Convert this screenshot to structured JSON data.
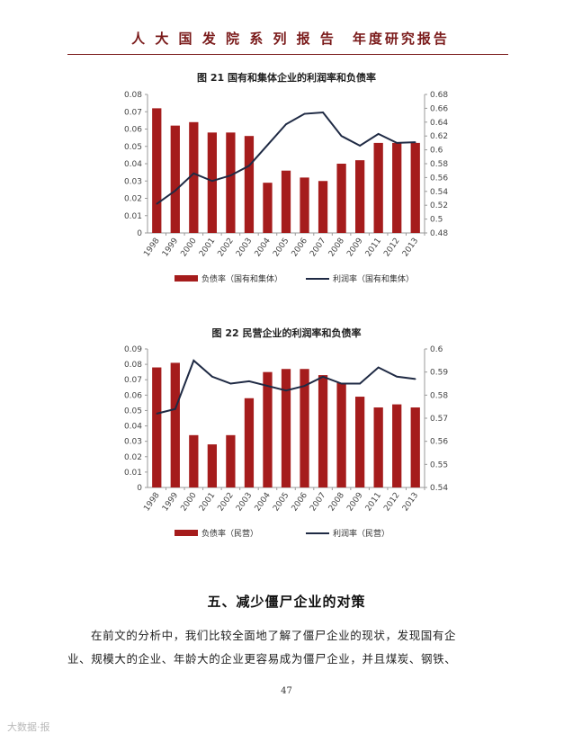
{
  "header": {
    "title": "人 大 国 发 院 系 列 报 告　年度研究报告"
  },
  "chart_data": [
    {
      "type": "bar",
      "title": "图 21 国有和集体企业的利润率和负债率",
      "categories": [
        "1998",
        "1999",
        "2000",
        "2001",
        "2002",
        "2003",
        "2004",
        "2005",
        "2006",
        "2007",
        "2008",
        "2009",
        "2011",
        "2012",
        "2013"
      ],
      "series": [
        {
          "name": "负债率（国有和集体）",
          "type": "bar",
          "axis": "left",
          "values": [
            0.072,
            0.062,
            0.064,
            0.058,
            0.058,
            0.056,
            0.029,
            0.036,
            0.032,
            0.03,
            0.04,
            0.042,
            0.052,
            0.052,
            0.052
          ]
        },
        {
          "name": "利润率（国有和集体）",
          "type": "line",
          "axis": "right",
          "values": [
            0.522,
            0.541,
            0.566,
            0.555,
            0.563,
            0.577,
            0.607,
            0.637,
            0.652,
            0.654,
            0.62,
            0.606,
            0.623,
            0.61,
            0.611
          ]
        }
      ],
      "y_left": {
        "min": 0,
        "max": 0.08,
        "step": 0.01,
        "ticks": [
          "0",
          "0.01",
          "0.02",
          "0.03",
          "0.04",
          "0.05",
          "0.06",
          "0.07",
          "0.08"
        ]
      },
      "y_right": {
        "min": 0.48,
        "max": 0.68,
        "step": 0.02,
        "ticks": [
          "0.48",
          "0.5",
          "0.52",
          "0.54",
          "0.56",
          "0.58",
          "0.6",
          "0.62",
          "0.64",
          "0.66",
          "0.68"
        ]
      },
      "grid": false,
      "legend": "bottom",
      "colors": {
        "bar": "#a51c1c",
        "line": "#1f2a44"
      }
    },
    {
      "type": "bar",
      "title": "图 22 民营企业的利润率和负债率",
      "categories": [
        "1998",
        "1999",
        "2000",
        "2001",
        "2002",
        "2003",
        "2004",
        "2005",
        "2006",
        "2007",
        "2008",
        "2009",
        "2011",
        "2012",
        "2013"
      ],
      "series": [
        {
          "name": "负债率（民营）",
          "type": "bar",
          "axis": "left",
          "values": [
            0.078,
            0.081,
            0.034,
            0.028,
            0.034,
            0.058,
            0.075,
            0.077,
            0.077,
            0.073,
            0.068,
            0.059,
            0.052,
            0.054,
            0.052
          ]
        },
        {
          "name": "利润率（民营）",
          "type": "line",
          "axis": "right",
          "values": [
            0.572,
            0.574,
            0.595,
            0.588,
            0.585,
            0.586,
            0.584,
            0.582,
            0.584,
            0.588,
            0.585,
            0.585,
            0.592,
            0.588,
            0.587
          ]
        }
      ],
      "y_left": {
        "min": 0,
        "max": 0.09,
        "step": 0.01,
        "ticks": [
          "0",
          "0.01",
          "0.02",
          "0.03",
          "0.04",
          "0.05",
          "0.06",
          "0.07",
          "0.08",
          "0.09"
        ]
      },
      "y_right": {
        "min": 0.54,
        "max": 0.6,
        "step": 0.01,
        "ticks": [
          "0.54",
          "0.55",
          "0.56",
          "0.57",
          "0.58",
          "0.59",
          "0.6"
        ]
      },
      "grid": false,
      "legend": "bottom",
      "colors": {
        "bar": "#a51c1c",
        "line": "#1f2a44"
      }
    }
  ],
  "section": {
    "title": "五、减少僵尸企业的对策"
  },
  "paragraph": {
    "line1": "在前文的分析中，我们比较全面地了解了僵尸企业的现状，发现国有企",
    "line2": "业、规模大的企业、年龄大的企业更容易成为僵尸企业，并且煤炭、钢铁、"
  },
  "page_number": "47",
  "watermark": "大数据·报"
}
